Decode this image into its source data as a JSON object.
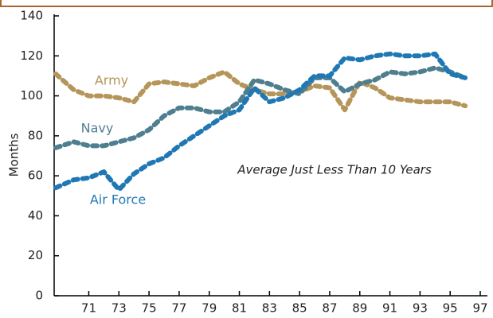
{
  "chart_data": {
    "type": "line",
    "ylabel": "Months",
    "annotation": "Average Just Less Than 10 Years",
    "x": [
      68.8,
      70,
      71,
      72,
      73,
      74,
      75,
      76,
      77,
      78,
      79,
      80,
      81,
      82,
      83,
      84,
      85,
      86,
      87,
      88,
      89,
      90,
      91,
      92,
      93,
      94,
      95,
      96
    ],
    "series": [
      {
        "name": "Army",
        "color": "#b5955a",
        "values": [
          111,
          103,
          100,
          100,
          99,
          97,
          106,
          107,
          106,
          105,
          109,
          112,
          106,
          103,
          101,
          101,
          102,
          105,
          104,
          93,
          107,
          104,
          99,
          98,
          97,
          97,
          97,
          95
        ]
      },
      {
        "name": "Navy",
        "color": "#4f7f8f",
        "values": [
          74,
          77,
          75,
          75,
          77,
          79,
          83,
          90,
          94,
          94,
          92,
          92,
          97,
          108,
          106,
          103,
          101,
          109,
          109,
          102,
          106,
          108,
          112,
          111,
          112,
          114,
          112,
          109
        ]
      },
      {
        "name": "Air Force",
        "color": "#1f78b4",
        "values": [
          54,
          58,
          59,
          62,
          53,
          61,
          66,
          69,
          75,
          80,
          85,
          90,
          93,
          104,
          97,
          99,
          103,
          110,
          110,
          119,
          118,
          120,
          121,
          120,
          120,
          121,
          111,
          109
        ]
      }
    ],
    "xlim": [
      68.7,
      97
    ],
    "xticks": [
      71,
      73,
      75,
      77,
      79,
      81,
      83,
      85,
      87,
      89,
      91,
      93,
      95,
      97
    ],
    "ylim": [
      0,
      140
    ],
    "yticks": [
      0,
      20,
      40,
      60,
      80,
      100,
      120,
      140
    ],
    "grid": false
  }
}
